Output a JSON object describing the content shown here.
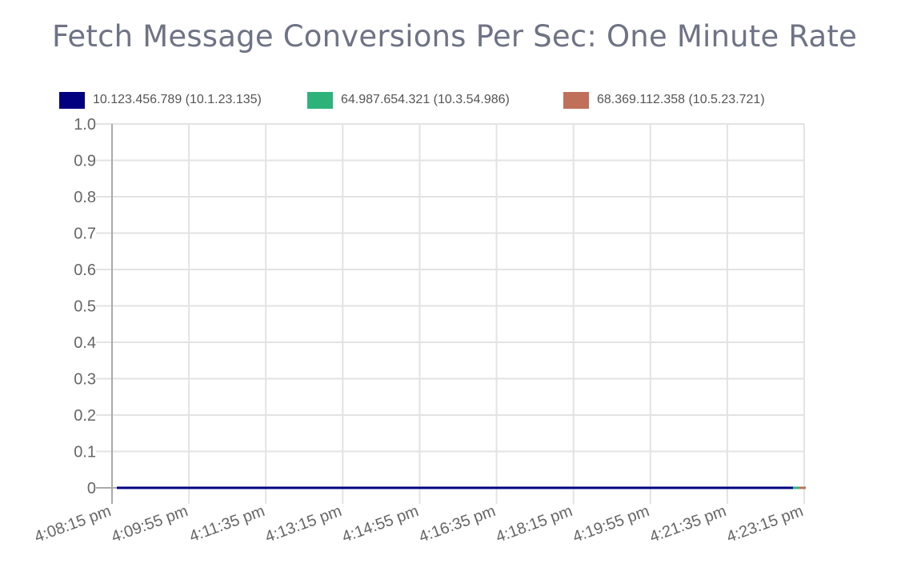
{
  "title": "Fetch Message Conversions Per Sec: One Minute Rate",
  "legend": [
    {
      "label": "10.123.456.789 (10.1.23.135)",
      "color": "#000080"
    },
    {
      "label": "64.987.654.321 (10.3.54.986)",
      "color": "#2db37a"
    },
    {
      "label": "68.369.112.358 (10.5.23.721)",
      "color": "#c0705a"
    }
  ],
  "y_ticks": [
    "1.0",
    "0.9",
    "0.8",
    "0.7",
    "0.6",
    "0.5",
    "0.4",
    "0.3",
    "0.2",
    "0.1",
    "0"
  ],
  "x_ticks": [
    "4:08:15 pm",
    "4:09:55 pm",
    "4:11:35 pm",
    "4:13:15 pm",
    "4:14:55 pm",
    "4:16:35 pm",
    "4:18:15 pm",
    "4:19:55 pm",
    "4:21:35 pm",
    "4:23:15 pm"
  ],
  "chart_data": {
    "type": "line",
    "title": "Fetch Message Conversions Per Sec: One Minute Rate",
    "xlabel": "",
    "ylabel": "",
    "ylim": [
      0,
      1.0
    ],
    "grid": true,
    "legend_position": "top",
    "x": [
      "4:08:15 pm",
      "4:09:55 pm",
      "4:11:35 pm",
      "4:13:15 pm",
      "4:14:55 pm",
      "4:16:35 pm",
      "4:18:15 pm",
      "4:19:55 pm",
      "4:21:35 pm",
      "4:23:15 pm"
    ],
    "series": [
      {
        "name": "10.123.456.789 (10.1.23.135)",
        "color": "#000080",
        "values": [
          0,
          0,
          0,
          0,
          0,
          0,
          0,
          0,
          0,
          0
        ]
      },
      {
        "name": "64.987.654.321 (10.3.54.986)",
        "color": "#2db37a",
        "values": [
          null,
          null,
          null,
          null,
          null,
          null,
          null,
          null,
          null,
          0
        ]
      },
      {
        "name": "68.369.112.358 (10.5.23.721)",
        "color": "#c0705a",
        "values": [
          null,
          null,
          null,
          null,
          null,
          null,
          null,
          null,
          null,
          0
        ]
      }
    ]
  }
}
